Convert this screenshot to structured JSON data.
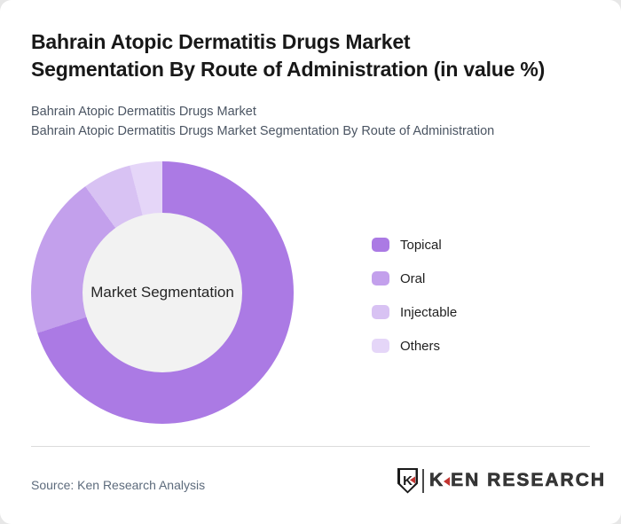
{
  "header": {
    "title_line1": "Bahrain Atopic Dermatitis Drugs Market",
    "title_line2": "Segmentation By Route of Administration (in value %)",
    "subtitle_line1": "Bahrain Atopic Dermatitis Drugs Market",
    "subtitle_line2": "Bahrain Atopic Dermatitis Drugs Market Segmentation By Route of Administration"
  },
  "chart_data": {
    "type": "pie",
    "subtype": "donut",
    "title": "Bahrain Atopic Dermatitis Drugs Market Segmentation By Route of Administration (in value %)",
    "center_label": "Market Segmentation",
    "categories": [
      "Topical",
      "Oral",
      "Injectable",
      "Others"
    ],
    "values": [
      70,
      20,
      6,
      4
    ],
    "unit": "% of value",
    "note": "no numeric data labels shown on chart; segment shares estimated from arc angles",
    "colors": [
      "#ab7ae4",
      "#c3a0ec",
      "#d8c2f3",
      "#e5d6f8"
    ],
    "inner_hole_color": "#f2f2f2",
    "start_angle_deg": 0,
    "direction": "clockwise",
    "legend_position": "right",
    "data_labels_shown": false
  },
  "footer": {
    "source": "Source: Ken Research Analysis",
    "brand": {
      "name": "KEN RESEARCH",
      "shield_letter": "K",
      "wordmark_k": "K",
      "wordmark_rest": "EN RESEARCH",
      "accent_color": "#c23430"
    }
  }
}
